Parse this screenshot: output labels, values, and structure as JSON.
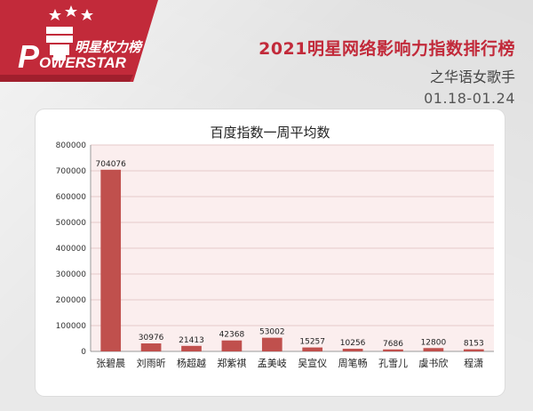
{
  "brand": {
    "name_cn": "明星权力榜",
    "name_en": "OWERSTAR",
    "initial": "P"
  },
  "header": {
    "title": "2021明星网络影响力指数排行榜",
    "subtitle": "之华语女歌手",
    "date_range": "01.18-01.24"
  },
  "colors": {
    "accent": "#c22a3a",
    "bar": "#c0504d",
    "plot_bg": "#fbeeee"
  },
  "chart_data": {
    "type": "bar",
    "title": "百度指数一周平均数",
    "categories": [
      "张碧晨",
      "刘雨昕",
      "杨超越",
      "郑紫祺",
      "孟美岐",
      "吴宣仪",
      "周笔畅",
      "孔雪儿",
      "虞书欣",
      "程潇"
    ],
    "values": [
      704076,
      30976,
      21413,
      42368,
      53002,
      15257,
      10256,
      7686,
      12800,
      8153
    ],
    "value_labels": [
      "704076",
      "30976",
      "21413",
      "42368",
      "53002",
      "15257",
      "10256",
      "7686",
      "12800",
      "8153"
    ],
    "ylim": [
      0,
      800000
    ],
    "yticks": [
      0,
      100000,
      200000,
      300000,
      400000,
      500000,
      600000,
      700000,
      800000
    ],
    "ytick_labels": [
      "0",
      "100000",
      "200000",
      "300000",
      "400000",
      "500000",
      "600000",
      "700000",
      "800000"
    ],
    "grid": true,
    "xlabel": "",
    "ylabel": ""
  }
}
